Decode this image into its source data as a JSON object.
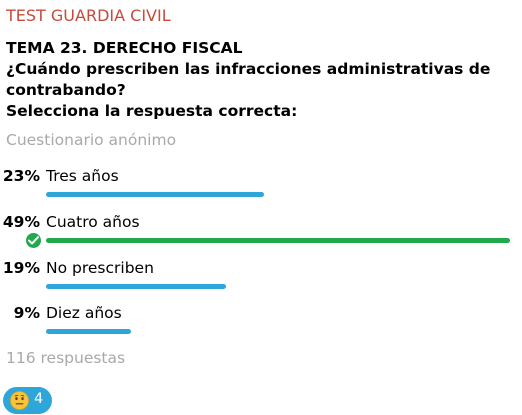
{
  "channel": {
    "title": "TEST GUARDIA CIVIL"
  },
  "poll": {
    "question_lines": [
      "TEMA 23. DERECHO FISCAL",
      "¿Cuándo prescriben las infracciones administrativas de",
      "contrabando?",
      "Selecciona la respuesta correcta:"
    ],
    "type_label": "Cuestionario anónimo",
    "options": [
      {
        "percent_label": "23%",
        "label": "Tres años",
        "share": 0.23,
        "correct": false
      },
      {
        "percent_label": "49%",
        "label": "Cuatro años",
        "share": 0.49,
        "correct": true
      },
      {
        "percent_label": "19%",
        "label": "No prescriben",
        "share": 0.19,
        "correct": false
      },
      {
        "percent_label": "9%",
        "label": "Diez años",
        "share": 0.09,
        "correct": false
      }
    ],
    "votes_label": "116 respuestas"
  },
  "reaction": {
    "emoji": "neutral-face-emoji",
    "count": "4"
  },
  "colors": {
    "title": "#c54b3c",
    "bar": "#2ea6d9",
    "correct_bar": "#21a94b",
    "muted_text": "#a9a9a9"
  }
}
